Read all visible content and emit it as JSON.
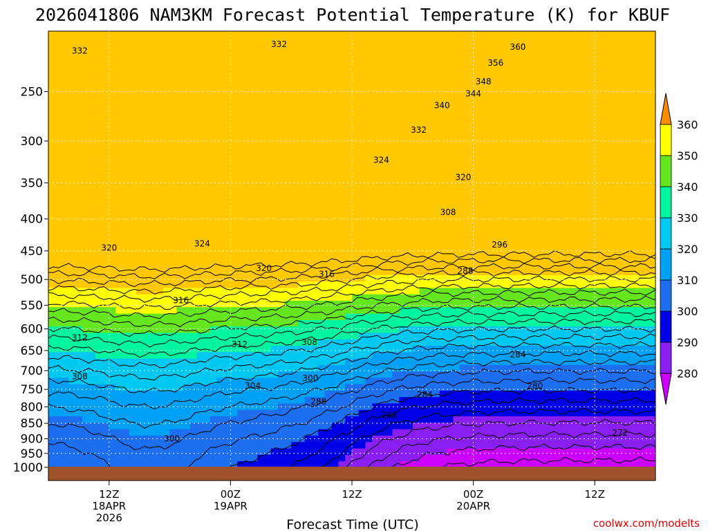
{
  "chart_data": {
    "type": "heatmap",
    "title": "2026041806 NAM3KM Forecast Potential Temperature (K) for KBUF",
    "xlabel": "Forecast Time (UTC)",
    "ylabel": "",
    "y_axis": {
      "scale": "log-pressure",
      "range": [
        1050,
        200
      ],
      "ticks": [
        1000,
        950,
        900,
        850,
        800,
        750,
        700,
        650,
        600,
        550,
        500,
        450,
        400,
        350,
        300,
        250
      ]
    },
    "x_axis": {
      "range_hours": [
        0,
        60
      ],
      "ticks": [
        {
          "hour": 6,
          "lines": [
            "12Z",
            "18APR",
            "2026"
          ]
        },
        {
          "hour": 18,
          "lines": [
            "00Z",
            "19APR"
          ]
        },
        {
          "hour": 30,
          "lines": [
            "12Z"
          ]
        },
        {
          "hour": 42,
          "lines": [
            "00Z",
            "20APR"
          ]
        },
        {
          "hour": 54,
          "lines": [
            "12Z"
          ]
        }
      ]
    },
    "colorbar": {
      "levels": [
        280,
        290,
        300,
        310,
        320,
        330,
        340,
        350,
        360
      ],
      "labels": [
        "280",
        "290",
        "300",
        "310",
        "320",
        "330",
        "340",
        "350",
        "360"
      ],
      "colors": [
        "#cc00ff",
        "#8a1ff2",
        "#0000e6",
        "#1e6ef0",
        "#00a0f5",
        "#00c8f0",
        "#00f5a0",
        "#66e61e",
        "#ffff00",
        "#ffc800",
        "#ff8c00"
      ]
    },
    "contour_interval_K": 4,
    "contour_labels": [
      {
        "text": "332",
        "hour": 3.1,
        "p": 215
      },
      {
        "text": "332",
        "hour": 22.8,
        "p": 210
      },
      {
        "text": "360",
        "hour": 46.4,
        "p": 212
      },
      {
        "text": "356",
        "hour": 44.2,
        "p": 225
      },
      {
        "text": "348",
        "hour": 43.0,
        "p": 241
      },
      {
        "text": "344",
        "hour": 42.0,
        "p": 252
      },
      {
        "text": "340",
        "hour": 38.9,
        "p": 263
      },
      {
        "text": "332",
        "hour": 36.6,
        "p": 288
      },
      {
        "text": "324",
        "hour": 32.9,
        "p": 322
      },
      {
        "text": "320",
        "hour": 41.0,
        "p": 343
      },
      {
        "text": "308",
        "hour": 39.5,
        "p": 390
      },
      {
        "text": "296",
        "hour": 44.6,
        "p": 440
      },
      {
        "text": "288",
        "hour": 41.2,
        "p": 485
      },
      {
        "text": "324",
        "hour": 15.2,
        "p": 438
      },
      {
        "text": "320",
        "hour": 6.0,
        "p": 445
      },
      {
        "text": "320",
        "hour": 21.3,
        "p": 480
      },
      {
        "text": "316",
        "hour": 27.5,
        "p": 490
      },
      {
        "text": "316",
        "hour": 13.1,
        "p": 540
      },
      {
        "text": "312",
        "hour": 3.1,
        "p": 620
      },
      {
        "text": "312",
        "hour": 18.9,
        "p": 635
      },
      {
        "text": "308",
        "hour": 25.8,
        "p": 630
      },
      {
        "text": "308",
        "hour": 3.1,
        "p": 715
      },
      {
        "text": "304",
        "hour": 20.2,
        "p": 740
      },
      {
        "text": "300",
        "hour": 25.9,
        "p": 720
      },
      {
        "text": "288",
        "hour": 26.7,
        "p": 785
      },
      {
        "text": "284",
        "hour": 37.2,
        "p": 765
      },
      {
        "text": "284",
        "hour": 46.4,
        "p": 660
      },
      {
        "text": "280",
        "hour": 33.7,
        "p": 825
      },
      {
        "text": "280",
        "hour": 48.1,
        "p": 740
      },
      {
        "text": "272",
        "hour": 56.5,
        "p": 880
      },
      {
        "text": "300",
        "hour": 12.2,
        "p": 900
      }
    ]
  },
  "credit": "coolwx.com/modelts"
}
